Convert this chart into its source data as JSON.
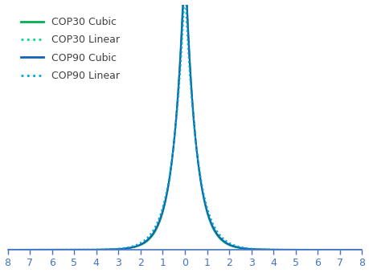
{
  "title": "",
  "xlabel": "",
  "ylabel": "",
  "xlim": [
    -8,
    8
  ],
  "ylim": [
    0,
    0.85
  ],
  "xticks": [
    -8,
    -7,
    -6,
    -5,
    -4,
    -3,
    -2,
    -1,
    0,
    1,
    2,
    3,
    4,
    5,
    6,
    7,
    8
  ],
  "series": [
    {
      "label": "COP30 Cubic",
      "color": "#00b050",
      "linestyle": "solid",
      "linewidth": 1.5,
      "b": 0.48
    },
    {
      "label": "COP30 Linear",
      "color": "#00dd88",
      "linestyle": "dotted",
      "linewidth": 1.5,
      "b": 0.52
    },
    {
      "label": "COP90 Cubic",
      "color": "#1560bd",
      "linestyle": "solid",
      "linewidth": 1.5,
      "b": 0.5
    },
    {
      "label": "COP90 Linear",
      "color": "#00aacc",
      "linestyle": "dotted",
      "linewidth": 1.5,
      "b": 0.55
    }
  ],
  "background_color": "#ffffff",
  "legend_fontsize": 9,
  "tick_color": "#4472c4",
  "tick_fontsize": 9
}
